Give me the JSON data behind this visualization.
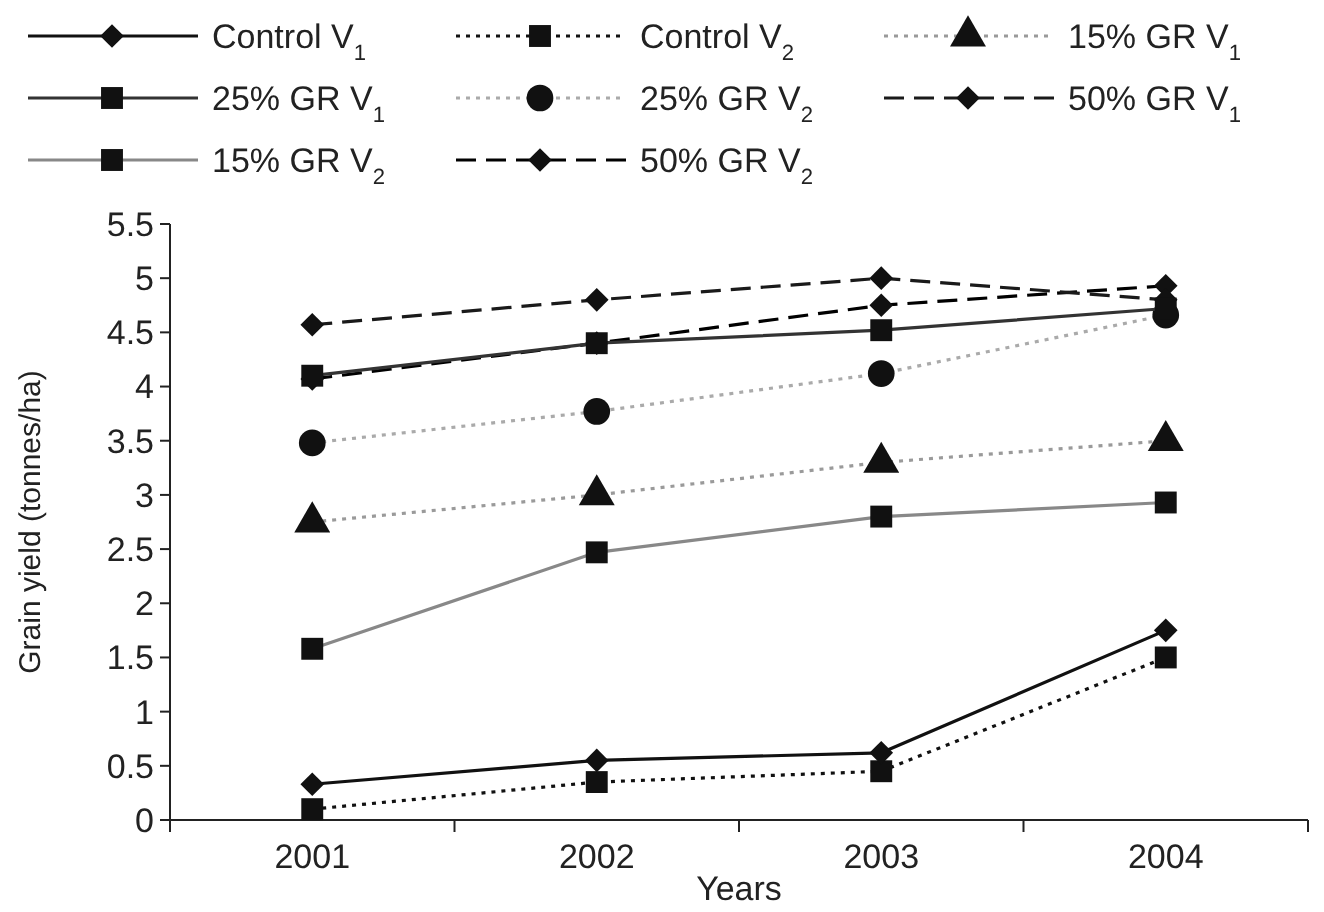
{
  "chart_data": {
    "type": "line",
    "xlabel": "Years",
    "ylabel": "Grain yield (tonnes/ha)",
    "categories": [
      "2001",
      "2002",
      "2003",
      "2004"
    ],
    "ylim": [
      0,
      5.5
    ],
    "yticks": [
      0,
      0.5,
      1,
      1.5,
      2,
      2.5,
      3,
      3.5,
      4,
      4.5,
      5,
      5.5
    ],
    "grid": false,
    "legend": "top",
    "series": [
      {
        "name": "Control V$_{1}$",
        "color": "#111111",
        "marker": "diamond",
        "line_style": "solid",
        "values": [
          0.33,
          0.55,
          0.62,
          1.75
        ]
      },
      {
        "name": "Control V$_{2}$",
        "color": "#111111",
        "marker": "square",
        "line_style": "dotted",
        "values": [
          0.1,
          0.35,
          0.45,
          1.5
        ]
      },
      {
        "name": "15% GR V$_{1}$",
        "color": "#9a9a9a",
        "marker": "triangle",
        "line_style": "dotted",
        "values": [
          2.75,
          3.0,
          3.3,
          3.5
        ]
      },
      {
        "name": "25% GR V$_{1}$",
        "color": "#333333",
        "marker": "square",
        "line_style": "solid",
        "values": [
          4.1,
          4.4,
          4.52,
          4.72
        ]
      },
      {
        "name": "25% GR V$_{2}$",
        "color": "#aaaaaa",
        "marker": "circle",
        "line_style": "dotted",
        "values": [
          3.48,
          3.77,
          4.12,
          4.66
        ]
      },
      {
        "name": "50% GR V$_{1}$",
        "color": "#1a1a1a",
        "marker": "diamond",
        "line_style": "dashed",
        "values": [
          4.57,
          4.8,
          5.0,
          4.8
        ]
      },
      {
        "name": "15% GR V$_{2}$",
        "color": "#888888",
        "marker": "square",
        "line_style": "solid",
        "values": [
          1.58,
          2.47,
          2.8,
          2.93
        ]
      },
      {
        "name": "50% GR V$_{2}$",
        "color": "#000000",
        "marker": "diamond",
        "line_style": "dashed",
        "values": [
          4.07,
          4.4,
          4.75,
          4.93
        ]
      }
    ]
  }
}
